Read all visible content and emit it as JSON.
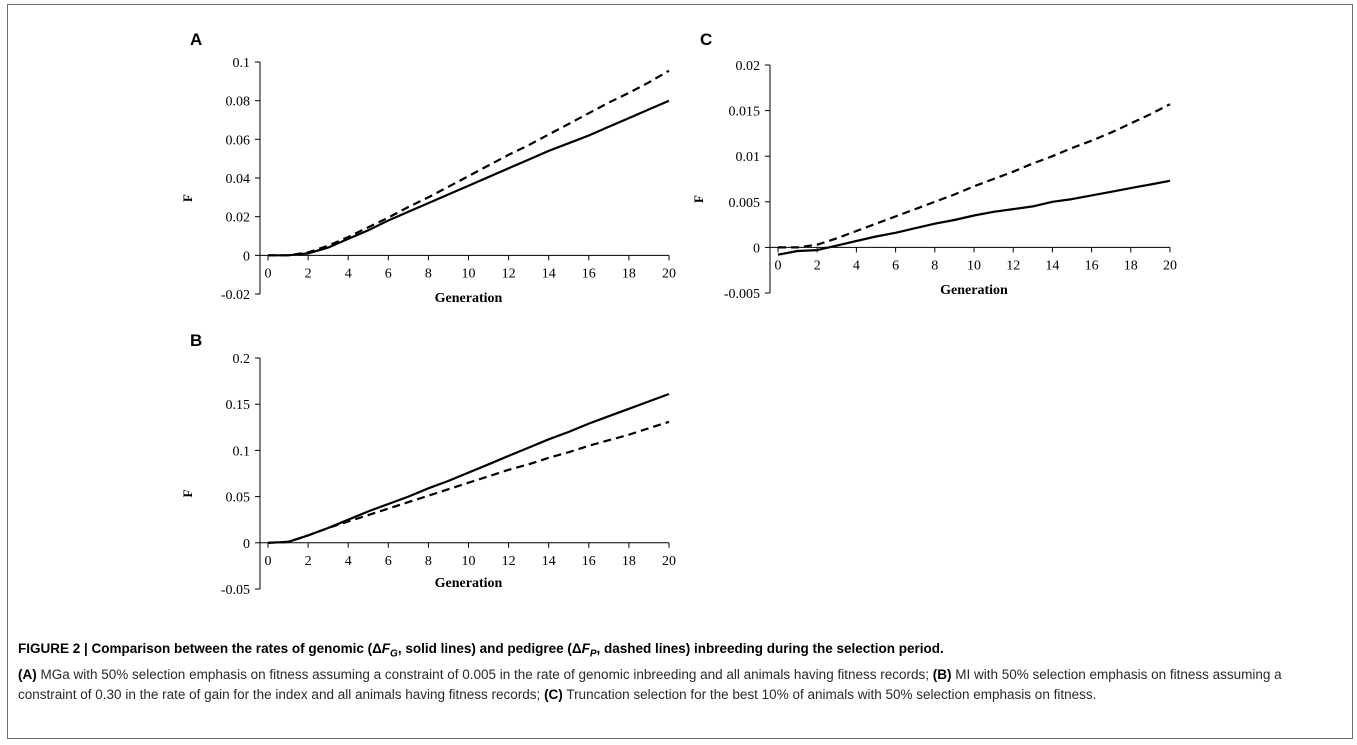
{
  "chart_data": [
    {
      "panel": "A",
      "type": "line",
      "xlabel": "Generation",
      "ylabel": "F",
      "xlim": [
        0,
        20
      ],
      "ylim": [
        -0.02,
        0.1
      ],
      "xticks": [
        0,
        2,
        4,
        6,
        8,
        10,
        12,
        14,
        16,
        18,
        20
      ],
      "yticks": [
        "-0.02",
        "0",
        "0.02",
        "0.04",
        "0.06",
        "0.08",
        "0.1"
      ],
      "series": [
        {
          "style": "solid",
          "x": [
            0,
            1,
            2,
            3,
            4,
            5,
            6,
            7,
            8,
            9,
            10,
            11,
            12,
            13,
            14,
            15,
            16,
            17,
            18,
            19,
            20
          ],
          "y": [
            0,
            0,
            0.001,
            0.004,
            0.0085,
            0.013,
            0.018,
            0.0225,
            0.027,
            0.0315,
            0.036,
            0.0405,
            0.045,
            0.0495,
            0.054,
            0.058,
            0.062,
            0.0665,
            0.071,
            0.0755,
            0.08
          ]
        },
        {
          "style": "dashed",
          "x": [
            0,
            1,
            2,
            3,
            4,
            5,
            6,
            7,
            8,
            9,
            10,
            11,
            12,
            13,
            14,
            15,
            16,
            17,
            18,
            19,
            20
          ],
          "y": [
            0,
            0,
            0.0015,
            0.005,
            0.0095,
            0.0145,
            0.0195,
            0.025,
            0.03,
            0.0355,
            0.041,
            0.0465,
            0.052,
            0.057,
            0.0625,
            0.068,
            0.0735,
            0.079,
            0.084,
            0.0895,
            0.0955
          ]
        }
      ]
    },
    {
      "panel": "B",
      "type": "line",
      "xlabel": "Generation",
      "ylabel": "F",
      "xlim": [
        0,
        20
      ],
      "ylim": [
        -0.05,
        0.2
      ],
      "xticks": [
        0,
        2,
        4,
        6,
        8,
        10,
        12,
        14,
        16,
        18,
        20
      ],
      "yticks": [
        "-0.05",
        "0",
        "0.05",
        "0.1",
        "0.15",
        "0.2"
      ],
      "series": [
        {
          "style": "solid",
          "x": [
            0,
            1,
            2,
            3,
            4,
            5,
            6,
            7,
            8,
            9,
            10,
            11,
            12,
            13,
            14,
            15,
            16,
            17,
            18,
            19,
            20
          ],
          "y": [
            0,
            0.001,
            0.008,
            0.016,
            0.025,
            0.034,
            0.042,
            0.05,
            0.059,
            0.067,
            0.076,
            0.085,
            0.094,
            0.103,
            0.112,
            0.12,
            0.129,
            0.137,
            0.145,
            0.153,
            0.161
          ]
        },
        {
          "style": "dashed",
          "x": [
            0,
            1,
            2,
            3,
            4,
            5,
            6,
            7,
            8,
            9,
            10,
            11,
            12,
            13,
            14,
            15,
            16,
            17,
            18,
            19,
            20
          ],
          "y": [
            0,
            0.001,
            0.008,
            0.016,
            0.023,
            0.03,
            0.037,
            0.044,
            0.051,
            0.058,
            0.065,
            0.072,
            0.079,
            0.085,
            0.092,
            0.098,
            0.105,
            0.111,
            0.117,
            0.124,
            0.131
          ]
        }
      ]
    },
    {
      "panel": "C",
      "type": "line",
      "xlabel": "Generation",
      "ylabel": "F",
      "xlim": [
        0,
        20
      ],
      "ylim": [
        -0.005,
        0.02
      ],
      "xticks": [
        0,
        2,
        4,
        6,
        8,
        10,
        12,
        14,
        16,
        18,
        20
      ],
      "yticks": [
        "-0.005",
        "0",
        "0.005",
        "0.01",
        "0.015",
        "0.02"
      ],
      "series": [
        {
          "style": "solid",
          "x": [
            0,
            1,
            2,
            3,
            4,
            5,
            6,
            7,
            8,
            9,
            10,
            11,
            12,
            13,
            14,
            15,
            16,
            17,
            18,
            19,
            20
          ],
          "y": [
            -0.0008,
            -0.0004,
            -0.0003,
            0.0002,
            0.0007,
            0.0012,
            0.0016,
            0.0021,
            0.0026,
            0.003,
            0.0035,
            0.0039,
            0.0042,
            0.0045,
            0.005,
            0.0053,
            0.0057,
            0.0061,
            0.0065,
            0.0069,
            0.0073
          ]
        },
        {
          "style": "dashed",
          "x": [
            0,
            1,
            2,
            3,
            4,
            5,
            6,
            7,
            8,
            9,
            10,
            11,
            12,
            13,
            14,
            15,
            16,
            17,
            18,
            19,
            20
          ],
          "y": [
            0,
            0,
            0.0003,
            0.001,
            0.0018,
            0.0026,
            0.0034,
            0.0042,
            0.005,
            0.0058,
            0.0067,
            0.0075,
            0.0083,
            0.0092,
            0.01,
            0.0109,
            0.0117,
            0.0126,
            0.0136,
            0.0146,
            0.0157
          ]
        }
      ]
    }
  ],
  "caption": {
    "title_text": "FIGURE 2 | Comparison between the rates of genomic (ΔF G, solid lines) and pedigree (ΔF P, dashed lines) inbreeding during the selection period.",
    "title_parts": [
      "FIGURE 2 | Comparison between the rates of genomic (Δ",
      "F",
      "G",
      ", solid lines) and pedigree (Δ",
      "F",
      "P",
      ", dashed lines) inbreeding during the selection period."
    ],
    "label_a": "(A)",
    "text_a": " MGa with 50% selection emphasis on fitness assuming a constraint of 0.005 in the rate of genomic inbreeding and all animals having fitness records; ",
    "label_b": "(B)",
    "text_b": " MI with 50% selection emphasis on fitness assuming a constraint of 0.30 in the rate of gain for the index and all animals having fitness records; ",
    "label_c": "(C)",
    "text_c": " Truncation selection for the best 10% of animals with 50% selection emphasis on fitness."
  }
}
